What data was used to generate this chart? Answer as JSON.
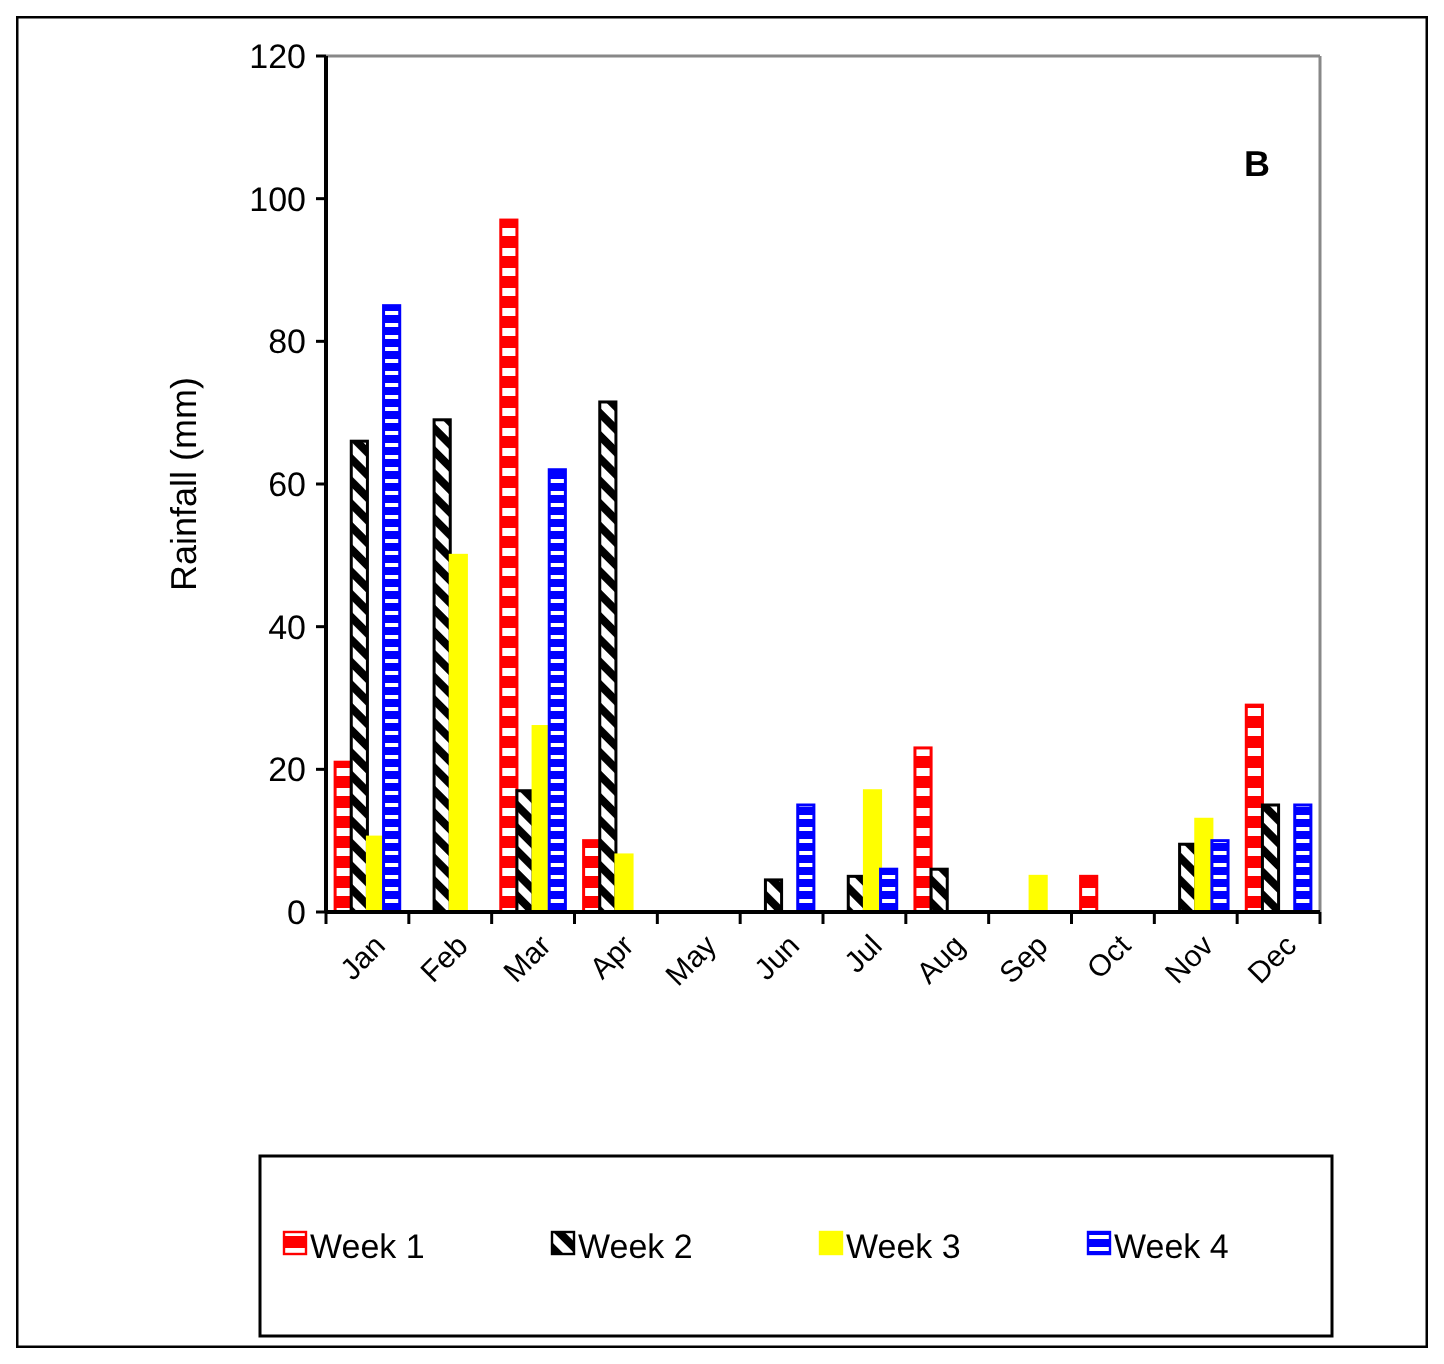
{
  "chart_data": {
    "type": "bar",
    "ylabel": "Rainfall (mm)",
    "annotations": [
      "B"
    ],
    "categories": [
      "Jan",
      "Feb",
      "Mar",
      "Apr",
      "May",
      "Jun",
      "Jul",
      "Aug",
      "Sep",
      "Oct",
      "Nov",
      "Dec"
    ],
    "series": [
      {
        "name": "Week 1",
        "color": "#ff0000",
        "values": [
          21,
          0,
          97,
          10,
          0,
          0,
          0,
          23,
          0,
          5,
          0,
          29
        ]
      },
      {
        "name": "Week 2",
        "color": "#000000",
        "values": [
          66,
          69,
          17,
          71.5,
          0,
          4.5,
          5,
          6,
          0,
          0,
          9.5,
          15
        ]
      },
      {
        "name": "Week 3",
        "color": "#ffff00",
        "values": [
          10.5,
          50,
          26,
          8,
          0,
          0,
          17,
          0,
          5,
          0,
          13,
          0
        ]
      },
      {
        "name": "Week 4",
        "color": "#0000ff",
        "values": [
          85,
          0,
          62,
          0,
          0,
          15,
          6,
          0,
          0,
          0,
          10,
          15
        ]
      }
    ],
    "ylim": [
      0,
      120
    ],
    "yticks": [
      0,
      20,
      40,
      60,
      80,
      100,
      120
    ],
    "grid": false,
    "legend": "bottom"
  }
}
